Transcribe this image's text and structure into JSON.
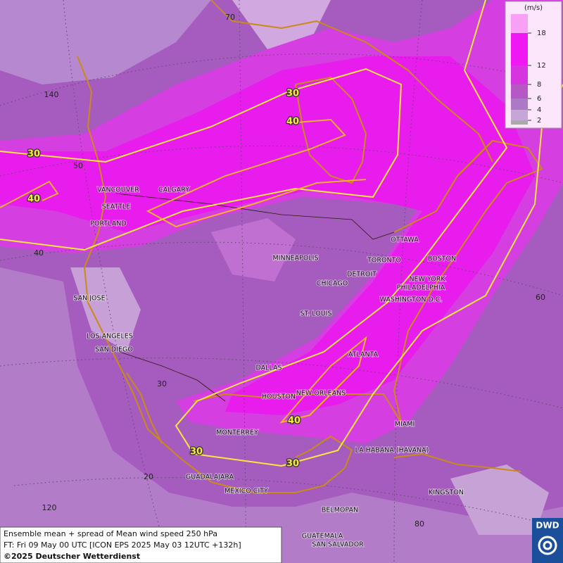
{
  "map": {
    "grid_labels": [
      70,
      140,
      50,
      40,
      30,
      20,
      120,
      60,
      80
    ],
    "contour_labels": [
      30,
      40,
      30,
      40,
      30,
      30,
      40
    ],
    "cities": [
      "VANCOUVER",
      "CALGARY",
      "SEATTLE",
      "PORTLAND",
      "MINNEAPOLIS",
      "OTTAWA",
      "TORONTO",
      "BOSTON",
      "DETROIT",
      "NEW YORK",
      "CHICAGO",
      "PHILADELPHIA",
      "WASHINGTON D.C.",
      "SAN JOSE",
      "ST. LOUIS",
      "LOS ANGELES",
      "SAN DIEGO",
      "ATLANTA",
      "DALLAS",
      "HOUSTON",
      "NEW ORLEANS",
      "MIAMI",
      "MONTERREY",
      "LA HABANA (HAVANA)",
      "GUADALAJARA",
      "MEXICO CITY",
      "KINGSTON",
      "BELMOPAN",
      "GUATEMALA",
      "SAN SALVADOR"
    ]
  },
  "legend": {
    "unit": "(m/s)",
    "ticks": [
      2,
      4,
      6,
      8,
      12,
      18
    ]
  },
  "footer": {
    "title": "Ensemble mean + spread of Mean wind speed 250 hPa",
    "forecast": "FT: Fri 09 May 00 UTC [ICON EPS 2025 May 03 12UTC +132h]",
    "copyright": "©2025 Deutscher Wetterdienst",
    "logo": "DWD"
  }
}
